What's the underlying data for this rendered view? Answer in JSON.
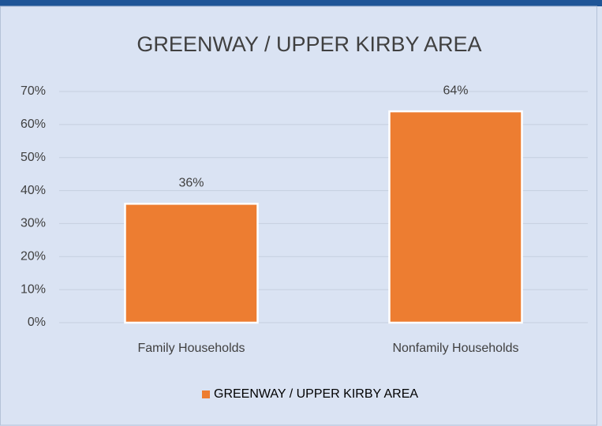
{
  "chart_data": {
    "type": "bar",
    "title": "GREENWAY / UPPER KIRBY AREA",
    "categories": [
      "Family Households",
      "Nonfamily Households"
    ],
    "series": [
      {
        "name": "GREENWAY / UPPER KIRBY AREA",
        "color": "#ed7d31",
        "values": [
          36,
          64
        ],
        "value_labels": [
          "36%",
          "64%"
        ]
      }
    ],
    "ylim": [
      0,
      70
    ],
    "yticks": [
      {
        "value": 0,
        "label": "0%"
      },
      {
        "value": 10,
        "label": "10%"
      },
      {
        "value": 20,
        "label": "20%"
      },
      {
        "value": 30,
        "label": "30%"
      },
      {
        "value": 40,
        "label": "40%"
      },
      {
        "value": 50,
        "label": "50%"
      },
      {
        "value": 60,
        "label": "60%"
      },
      {
        "value": 70,
        "label": "70%"
      }
    ],
    "grid": true,
    "legend": "bottom"
  }
}
